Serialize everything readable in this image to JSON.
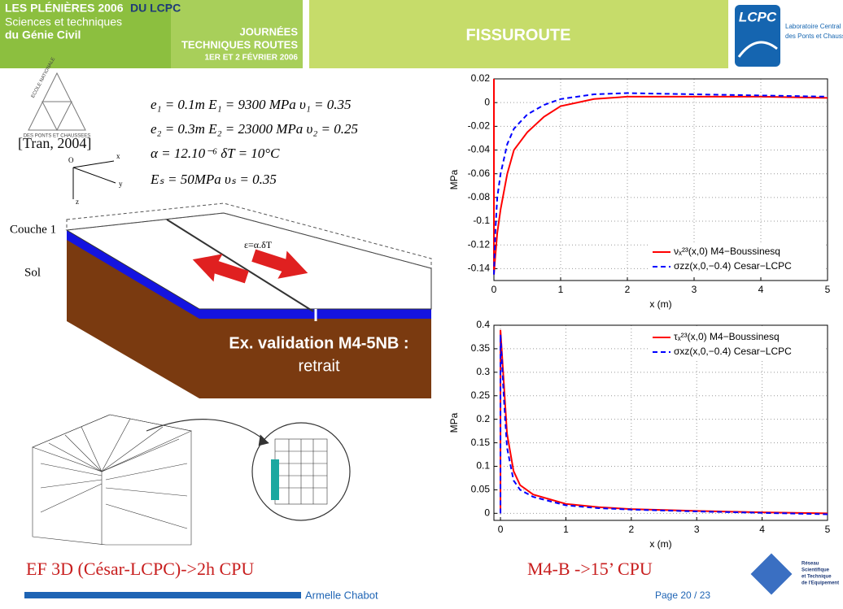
{
  "header": {
    "banner_top": "LES PLÉNIÈRES 2006",
    "banner_top_org": "DU LCPC",
    "banner_line2": "Sciences et techniques",
    "banner_line3": "du Génie Civil",
    "event_line1": "JOURNÉES",
    "event_line2": "TECHNIQUES ROUTES",
    "event_date": "1ER ET 2 FÉVRIER 2006",
    "title": "FISSUROUTE",
    "logo": "LCPC",
    "logo_line1": "Laboratoire Central",
    "logo_line2": "des Ponts et Chaussées"
  },
  "school_logo": {
    "top": "ECOLE NATIONALE",
    "bottom": "DES PONTS ET CHAUSSEES"
  },
  "reference": "[Tran, 2004]",
  "equations": [
    "e₁ = 0.1m  E₁ = 9300 MPa  υ₁ = 0.35",
    "e₂ = 0.3m  E₂ = 23000 MPa  υ₂ = 0.25",
    "α = 12.10⁻⁶  δT = 10°C",
    "Eₛ = 50MPa  υₛ = 0.35"
  ],
  "axes_labels": {
    "origin": "O",
    "x": "x",
    "y": "y",
    "z": "z"
  },
  "layer_labels": {
    "layer1": "Couche 1",
    "soil": "Sol"
  },
  "strain": "ε=α.δT",
  "validation": {
    "line1": "Ex. validation M4-5NB :",
    "line2": "retrait"
  },
  "footer": {
    "left_caption": "EF 3D (César-LCPC)->2h CPU",
    "right_caption": "M4-B ->15’ CPU",
    "author": "Armelle Chabot",
    "page": "Page 20 / 23",
    "network_logo": [
      "Réseau",
      "Scientifique",
      "et Technique",
      "de l'Equipement"
    ]
  },
  "chart_data": [
    {
      "type": "line",
      "ylabel": "MPa",
      "xlabel": "x (m)",
      "xlim": [
        0,
        5
      ],
      "ylim": [
        -0.15,
        0.02
      ],
      "xticks": [
        0,
        1,
        2,
        3,
        4,
        5
      ],
      "yticks": [
        0.02,
        0,
        -0.02,
        -0.04,
        -0.06,
        -0.08,
        -0.1,
        -0.12,
        -0.14
      ],
      "grid": true,
      "legend": "lower right",
      "x": [
        0,
        0,
        0.02,
        0.05,
        0.1,
        0.2,
        0.3,
        0.5,
        0.75,
        1,
        1.5,
        2,
        3,
        4,
        5
      ],
      "series": [
        {
          "name": "νₓ²³(x,0) M4−Boussinesq",
          "color": "#ff0000",
          "linestyle": "solid",
          "values": [
            0.02,
            -0.145,
            -0.13,
            -0.11,
            -0.09,
            -0.06,
            -0.04,
            -0.025,
            -0.012,
            -0.003,
            0.003,
            0.005,
            0.005,
            0.005,
            0.004
          ]
        },
        {
          "name": "σzz(x,0,−0.4) Cesar−LCPC",
          "color": "#0000ff",
          "linestyle": "dashed",
          "values": [
            -0.145,
            -0.145,
            -0.11,
            -0.08,
            -0.06,
            -0.035,
            -0.022,
            -0.01,
            -0.002,
            0.003,
            0.007,
            0.008,
            0.007,
            0.006,
            0.005
          ]
        }
      ]
    },
    {
      "type": "line",
      "ylabel": "MPa",
      "xlabel": "x (m)",
      "xlim": [
        -0.1,
        5
      ],
      "ylim": [
        -0.015,
        0.4
      ],
      "xticks": [
        0,
        1,
        2,
        3,
        4,
        5
      ],
      "yticks": [
        0,
        0.05,
        0.1,
        0.15,
        0.2,
        0.25,
        0.3,
        0.35,
        0.4
      ],
      "grid": true,
      "legend": "upper right",
      "x": [
        0,
        0,
        0.05,
        0.1,
        0.2,
        0.3,
        0.5,
        1,
        1.5,
        2,
        3,
        4,
        5
      ],
      "series": [
        {
          "name": "τₓ²³(x,0) M4−Boussinesq",
          "color": "#ff0000",
          "linestyle": "solid",
          "values": [
            0,
            0.39,
            0.28,
            0.17,
            0.09,
            0.06,
            0.04,
            0.02,
            0.013,
            0.009,
            0.005,
            0.002,
            0
          ]
        },
        {
          "name": "σxz(x,0,−0.4) Cesar−LCPC",
          "color": "#0000ff",
          "linestyle": "dashed",
          "values": [
            0,
            0.38,
            0.25,
            0.14,
            0.07,
            0.05,
            0.035,
            0.017,
            0.011,
            0.008,
            0.004,
            0.001,
            -0.002
          ]
        }
      ]
    }
  ]
}
